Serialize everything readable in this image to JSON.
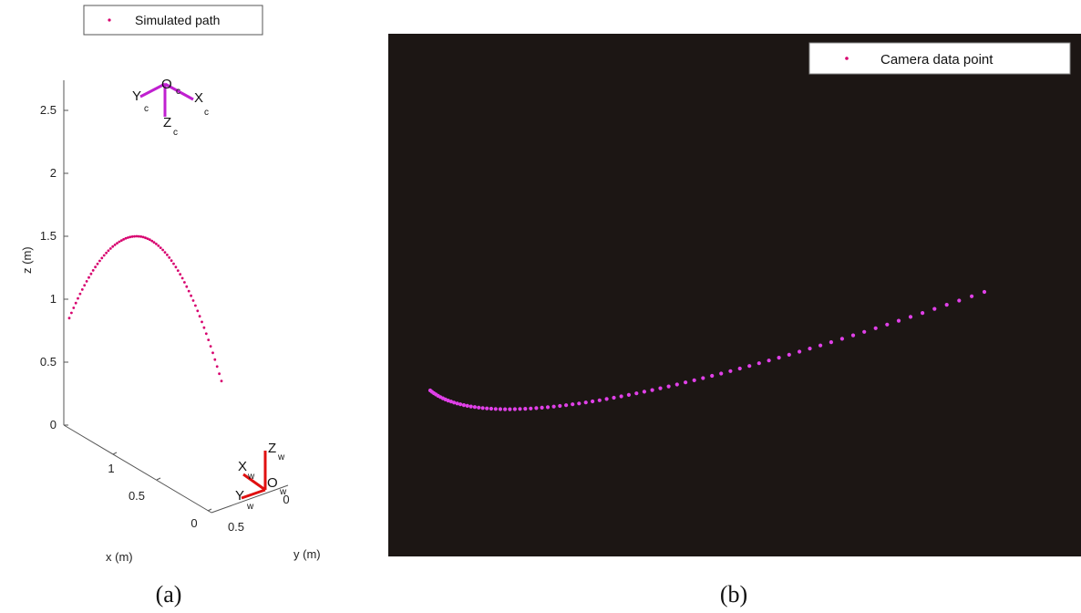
{
  "chart_data": [
    {
      "type": "scatter",
      "panel": "(a)",
      "legend": {
        "label": "Simulated path",
        "position": "top"
      },
      "xlabel": "x (m)",
      "ylabel": "y (m)",
      "zlabel": "z (m)",
      "z_ticks": [
        "0",
        "0.5",
        "1",
        "1.5",
        "2",
        "2.5"
      ],
      "x_ticks": [
        "0",
        "0.5",
        "1"
      ],
      "y_ticks": [
        "0.5",
        "0"
      ],
      "zlim": [
        0,
        2.75
      ],
      "series": [
        {
          "name": "Simulated path",
          "color": "#d7006e",
          "peak_z": 1.5,
          "start_z": 0.85,
          "end_z": 0.35
        }
      ],
      "camera_frame": {
        "origin": "O",
        "origin_sub": "c",
        "axes": [
          {
            "label": "X",
            "sub": "c"
          },
          {
            "label": "Y",
            "sub": "c"
          },
          {
            "label": "Z",
            "sub": "c"
          }
        ],
        "color": "#c020d0"
      },
      "world_frame": {
        "origin": "O",
        "origin_sub": "w",
        "axes": [
          {
            "label": "X",
            "sub": "w"
          },
          {
            "label": "Y",
            "sub": "w"
          },
          {
            "label": "Z",
            "sub": "w"
          }
        ],
        "color": "#e01010"
      },
      "caption": "(a)"
    },
    {
      "type": "scatter",
      "panel": "(b)",
      "legend": {
        "label": "Camera data point",
        "position": "top-right"
      },
      "background": "#1c1614",
      "series": [
        {
          "name": "Camera data point",
          "color": "#e040e8"
        }
      ],
      "caption": "(b)"
    }
  ],
  "colors": {
    "path_dot": "#d7006e",
    "camera_dot": "#e040e8",
    "dark_bg": "#1c1614",
    "camera_axes": "#c020d0",
    "world_axes": "#e01010"
  }
}
